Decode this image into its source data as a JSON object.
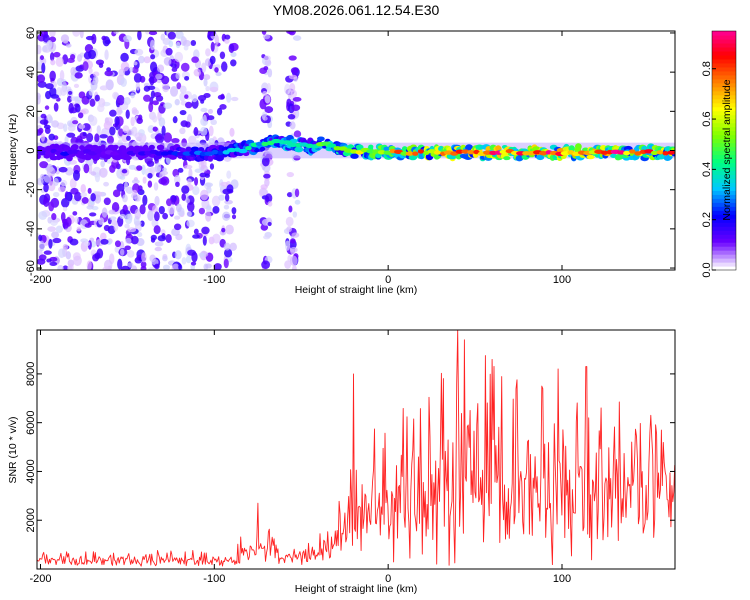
{
  "title": "YM08.2026.061.12.54.E30",
  "chart_data": [
    {
      "type": "heatmap",
      "name": "spectrogram",
      "title": "YM08.2026.061.12.54.E30",
      "xlabel": "Height of straight line (km)",
      "ylabel": "Frequency (Hz)",
      "xlim": [
        -202,
        165
      ],
      "ylim": [
        -61,
        61
      ],
      "x_ticks": [
        -200,
        -100,
        0,
        100
      ],
      "y_ticks": [
        60,
        40,
        20,
        0,
        -20,
        -40,
        -60
      ],
      "colorbar": {
        "label": "Normalized spectral amplitude",
        "range": [
          0,
          0.95
        ],
        "ticks": [
          0.0,
          0.2,
          0.4,
          0.6,
          0.8
        ],
        "colormap": [
          "#ffffff",
          "#6a00ff",
          "#0000ff",
          "#00c8ff",
          "#00ff80",
          "#80ff00",
          "#ffff00",
          "#ff8000",
          "#ff0000",
          "#ff00a0"
        ]
      },
      "features": [
        {
          "name": "broadband noise",
          "x_range": [
            -202,
            -88
          ],
          "freq_range": [
            -61,
            61
          ],
          "amplitude": 0.08
        },
        {
          "name": "noise streak",
          "x_range": [
            -72,
            -68
          ],
          "freq_range": [
            -61,
            61
          ],
          "amplitude": 0.05
        },
        {
          "name": "noise streak",
          "x_range": [
            -58,
            -52
          ],
          "freq_range": [
            -61,
            61
          ],
          "amplitude": 0.05
        },
        {
          "name": "center band",
          "x_range": [
            -202,
            165
          ],
          "center_freq": 0,
          "half_width_hz": 3
        }
      ],
      "ridge": {
        "x": [
          -200,
          -185,
          -170,
          -150,
          -130,
          -110,
          -95,
          -85,
          -75,
          -65,
          -55,
          -45,
          -35,
          -28,
          -20,
          -10,
          0,
          20,
          50,
          80,
          110,
          140,
          165
        ],
        "freq": [
          -1,
          -1,
          -1,
          -1,
          -1,
          -2,
          -1,
          0,
          3,
          5,
          3,
          2,
          4,
          1,
          0,
          -0.5,
          -1,
          -1,
          -1,
          -1,
          -1,
          -1,
          -1
        ],
        "amplitude": [
          0.1,
          0.15,
          0.1,
          0.1,
          0.15,
          0.2,
          0.25,
          0.3,
          0.3,
          0.35,
          0.35,
          0.3,
          0.45,
          0.4,
          0.45,
          0.5,
          0.55,
          0.6,
          0.65,
          0.7,
          0.7,
          0.65,
          0.6
        ]
      }
    },
    {
      "type": "line",
      "name": "snr",
      "xlabel": "Height of straight line (km)",
      "ylabel": "SNR (10 * v/v)",
      "xlim": [
        -202,
        165
      ],
      "ylim": [
        0,
        9800
      ],
      "x_ticks": [
        -200,
        -100,
        0,
        100
      ],
      "y_ticks": [
        2000,
        4000,
        6000,
        8000
      ],
      "color": "#ff2222",
      "envelope": {
        "x": [
          -202,
          -90,
          -80,
          -75,
          -70,
          -60,
          -50,
          -40,
          -30,
          -20,
          -10,
          0,
          10,
          30,
          50,
          70,
          90,
          110,
          130,
          150,
          165
        ],
        "baseline": [
          300,
          300,
          600,
          900,
          600,
          400,
          400,
          500,
          800,
          1500,
          2000,
          2200,
          2400,
          2600,
          2700,
          2700,
          2600,
          2600,
          2600,
          2700,
          2900
        ],
        "peak": [
          700,
          800,
          1800,
          2600,
          1800,
          1200,
          1000,
          1500,
          2500,
          4500,
          6000,
          6500,
          7000,
          8500,
          9000,
          8200,
          7600,
          7400,
          7000,
          6500,
          5500
        ]
      },
      "highlights": [
        {
          "x": -75,
          "snr": 2700
        },
        {
          "x": -20,
          "snr": 8000
        },
        {
          "x": 40,
          "snr": 9800
        },
        {
          "x": 44,
          "snr": 9400
        },
        {
          "x": 98,
          "snr": 8200
        },
        {
          "x": 114,
          "snr": 8300
        }
      ]
    }
  ]
}
